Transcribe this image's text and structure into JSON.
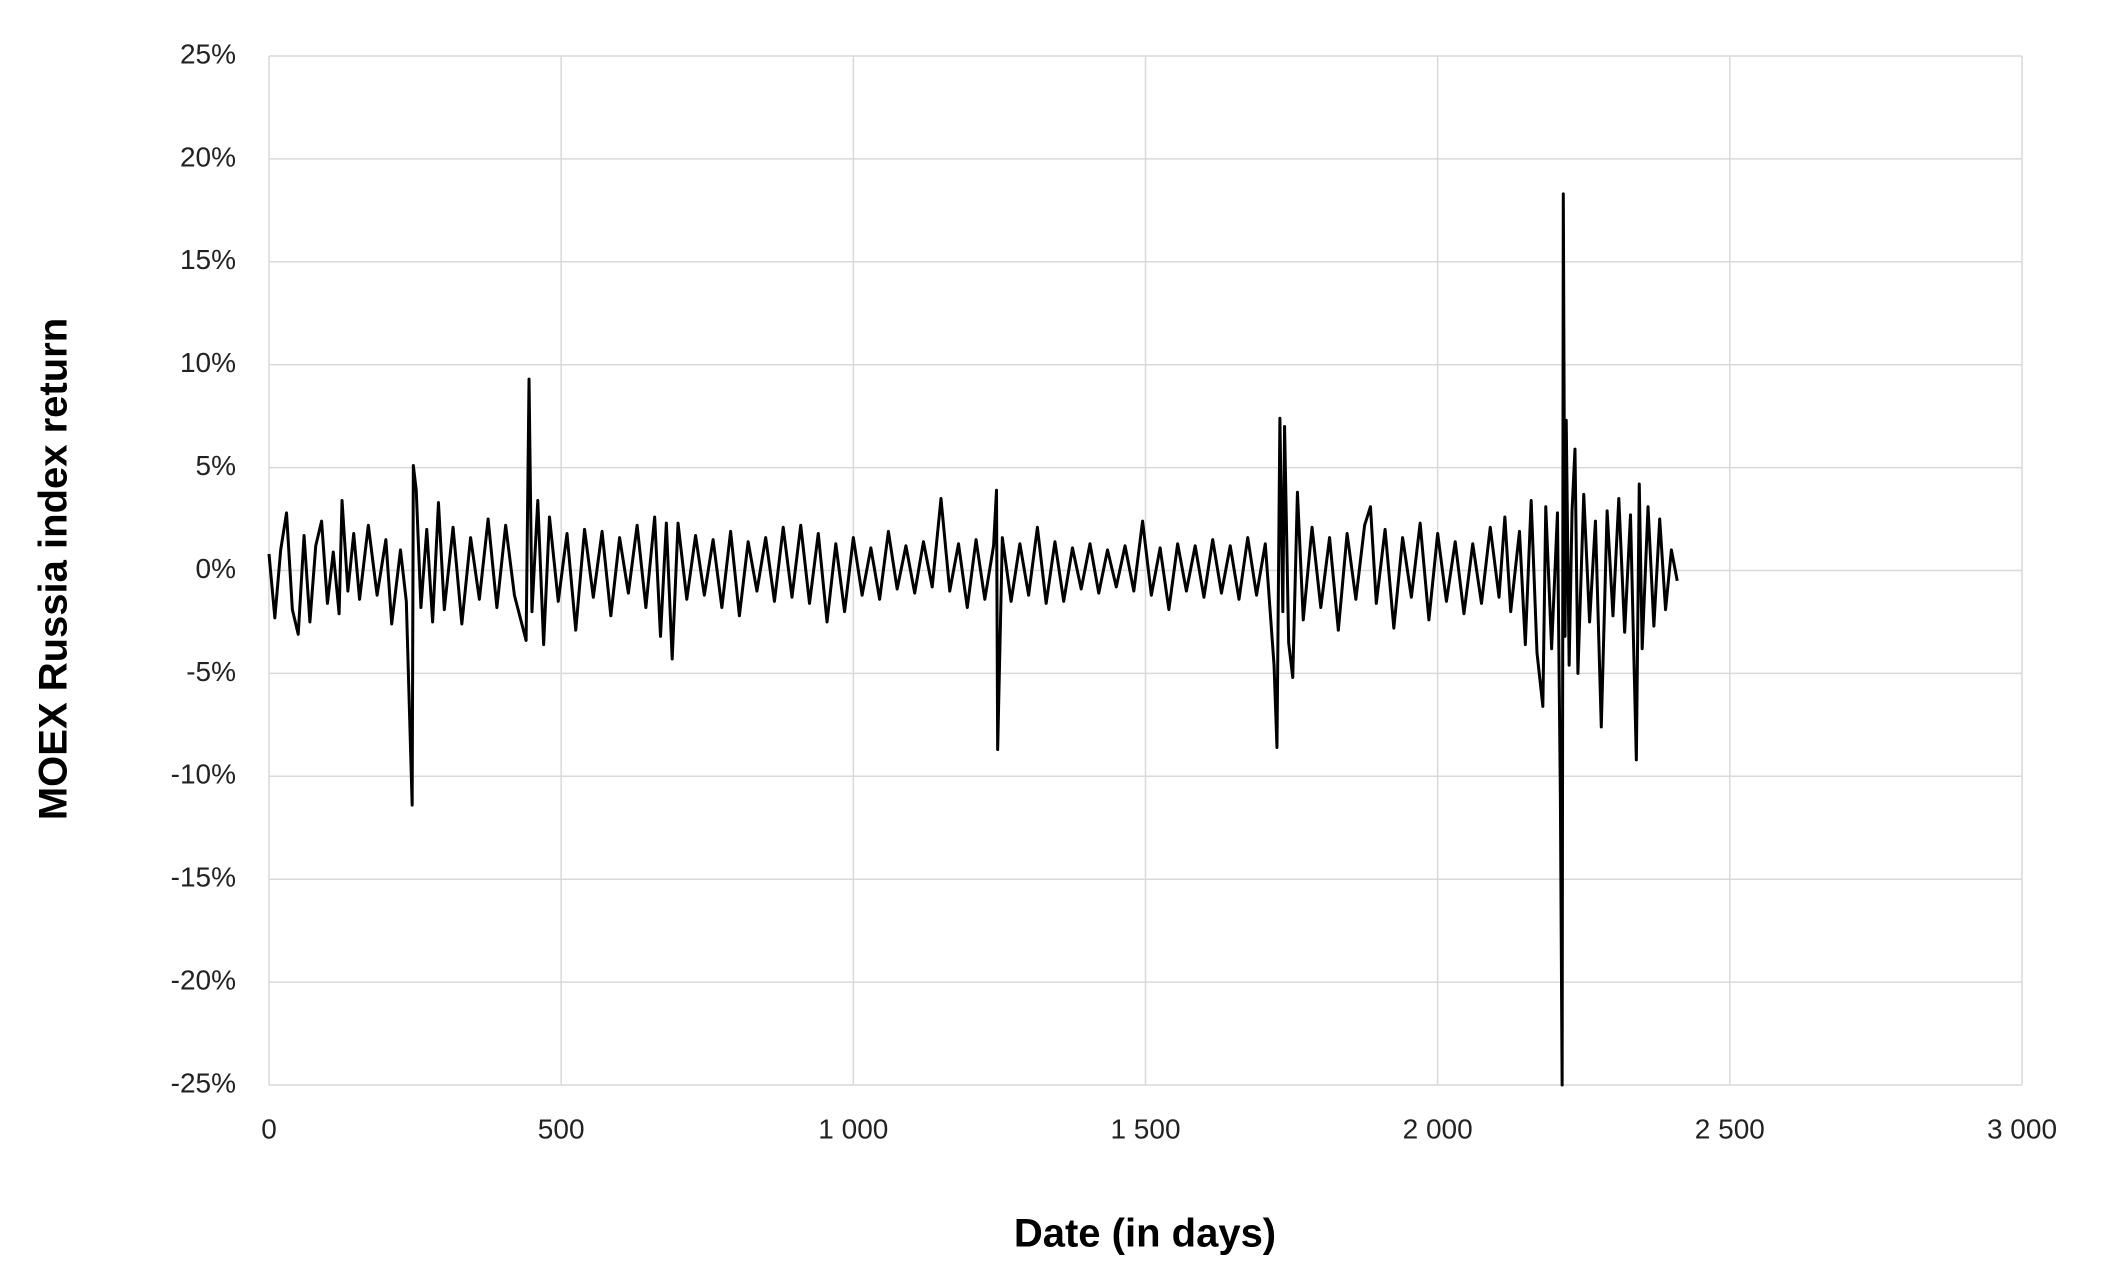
{
  "chart_data": {
    "type": "line",
    "xlabel": "Date (in days)",
    "ylabel": "MOEX Russia index return",
    "xlim": [
      0,
      3000
    ],
    "ylim": [
      -25,
      25
    ],
    "xticks": [
      0,
      500,
      {
        "value": 1000,
        "label": "1 000"
      },
      {
        "value": 1500,
        "label": "1 500"
      },
      {
        "value": 2000,
        "label": "2 000"
      },
      {
        "value": 2500,
        "label": "2 500"
      },
      {
        "value": 3000,
        "label": "3 000"
      }
    ],
    "yticks": [
      {
        "value": -25,
        "label": "-25%"
      },
      {
        "value": -20,
        "label": "-20%"
      },
      {
        "value": -15,
        "label": "-15%"
      },
      {
        "value": -10,
        "label": "-10%"
      },
      {
        "value": -5,
        "label": "-5%"
      },
      {
        "value": 0,
        "label": "0%"
      },
      {
        "value": 5,
        "label": "5%"
      },
      {
        "value": 10,
        "label": "10%"
      },
      {
        "value": 15,
        "label": "15%"
      },
      {
        "value": 20,
        "label": "20%"
      },
      {
        "value": 25,
        "label": "25%"
      }
    ],
    "grid": true,
    "color": "#000000",
    "x": [
      0,
      10,
      20,
      30,
      40,
      50,
      60,
      70,
      80,
      90,
      100,
      110,
      120,
      125,
      135,
      145,
      155,
      170,
      185,
      200,
      210,
      225,
      235,
      245,
      247,
      252,
      260,
      270,
      280,
      290,
      300,
      315,
      330,
      345,
      360,
      375,
      390,
      405,
      420,
      440,
      445,
      450,
      460,
      470,
      480,
      495,
      510,
      525,
      540,
      555,
      570,
      585,
      600,
      615,
      630,
      645,
      660,
      670,
      680,
      690,
      700,
      715,
      730,
      745,
      760,
      775,
      790,
      805,
      820,
      835,
      850,
      865,
      880,
      895,
      910,
      925,
      940,
      955,
      970,
      985,
      1000,
      1015,
      1030,
      1045,
      1060,
      1075,
      1090,
      1105,
      1120,
      1135,
      1150,
      1165,
      1180,
      1195,
      1210,
      1225,
      1240,
      1245,
      1247,
      1255,
      1270,
      1285,
      1300,
      1315,
      1330,
      1345,
      1360,
      1375,
      1390,
      1405,
      1420,
      1435,
      1450,
      1465,
      1480,
      1495,
      1510,
      1525,
      1540,
      1555,
      1570,
      1585,
      1600,
      1615,
      1630,
      1645,
      1660,
      1675,
      1690,
      1705,
      1720,
      1725,
      1730,
      1735,
      1738,
      1745,
      1752,
      1760,
      1770,
      1785,
      1800,
      1815,
      1830,
      1845,
      1860,
      1875,
      1885,
      1895,
      1910,
      1925,
      1940,
      1955,
      1970,
      1985,
      2000,
      2015,
      2030,
      2045,
      2060,
      2075,
      2090,
      2105,
      2115,
      2125,
      2140,
      2150,
      2160,
      2170,
      2180,
      2185,
      2195,
      2205,
      2210,
      2213,
      2215,
      2218,
      2220,
      2225,
      2230,
      2235,
      2240,
      2250,
      2260,
      2270,
      2280,
      2290,
      2300,
      2310,
      2320,
      2330,
      2340,
      2345,
      2350,
      2360,
      2370,
      2380,
      2390,
      2400,
      2410
    ],
    "values": [
      0.8,
      -2.3,
      1.0,
      2.8,
      -1.9,
      -3.1,
      1.7,
      -2.5,
      1.2,
      2.4,
      -1.6,
      0.9,
      -2.1,
      3.4,
      -1.0,
      1.8,
      -1.4,
      2.2,
      -1.2,
      1.5,
      -2.6,
      1.0,
      -1.5,
      -11.4,
      5.1,
      3.9,
      -1.8,
      2.0,
      -2.5,
      3.3,
      -1.9,
      2.1,
      -2.6,
      1.6,
      -1.4,
      2.5,
      -1.8,
      2.2,
      -1.2,
      -3.4,
      9.3,
      -2.0,
      3.4,
      -3.6,
      2.6,
      -1.5,
      1.8,
      -2.9,
      2.0,
      -1.3,
      1.9,
      -2.2,
      1.6,
      -1.1,
      2.2,
      -1.8,
      2.6,
      -3.2,
      2.3,
      -4.3,
      2.3,
      -1.4,
      1.7,
      -1.2,
      1.5,
      -1.8,
      1.9,
      -2.2,
      1.4,
      -1.0,
      1.6,
      -1.5,
      2.1,
      -1.3,
      2.2,
      -1.6,
      1.8,
      -2.5,
      1.3,
      -2.0,
      1.6,
      -1.2,
      1.1,
      -1.4,
      1.9,
      -0.9,
      1.2,
      -1.1,
      1.4,
      -0.8,
      3.5,
      -1.0,
      1.3,
      -1.8,
      1.5,
      -1.4,
      1.2,
      3.9,
      -8.7,
      1.6,
      -1.5,
      1.3,
      -1.2,
      2.1,
      -1.6,
      1.4,
      -1.5,
      1.1,
      -0.9,
      1.3,
      -1.1,
      1.0,
      -0.8,
      1.2,
      -1.0,
      2.4,
      -1.2,
      1.1,
      -1.9,
      1.3,
      -1.0,
      1.2,
      -1.3,
      1.5,
      -1.1,
      1.2,
      -1.4,
      1.6,
      -1.2,
      1.3,
      -4.6,
      -8.6,
      7.4,
      -2.0,
      7.0,
      -3.5,
      -5.2,
      3.8,
      -2.4,
      2.1,
      -1.8,
      1.6,
      -2.9,
      1.8,
      -1.4,
      2.2,
      3.1,
      -1.6,
      2.0,
      -2.8,
      1.6,
      -1.3,
      2.3,
      -2.4,
      1.8,
      -1.5,
      1.4,
      -2.1,
      1.3,
      -1.6,
      2.1,
      -1.3,
      2.6,
      -2.0,
      1.9,
      -3.6,
      3.4,
      -4.0,
      -6.6,
      3.1,
      -3.8,
      2.8,
      -11.0,
      -25,
      18.3,
      -3.2,
      7.3,
      -4.6,
      2.9,
      5.9,
      -5.0,
      3.7,
      -2.5,
      2.4,
      -7.6,
      2.9,
      -2.2,
      3.5,
      -3.0,
      2.7,
      -9.2,
      4.2,
      -3.8,
      3.1,
      -2.7,
      2.5,
      -1.9,
      1.0,
      -0.5
    ]
  }
}
